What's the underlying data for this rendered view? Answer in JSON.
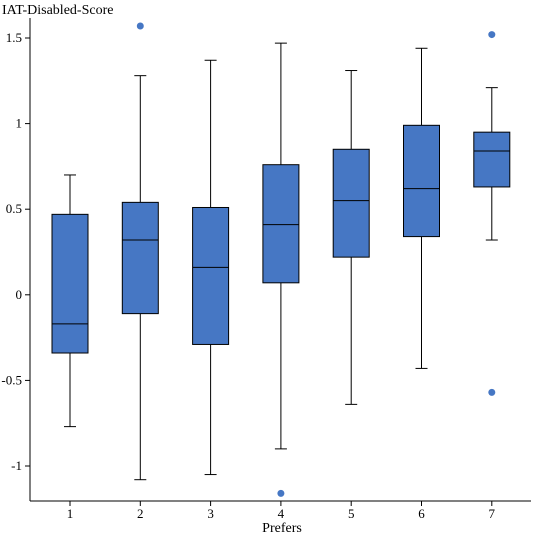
{
  "chart_data": {
    "type": "box",
    "ylabel": "IAT-Disabled-Score",
    "xlabel": "Prefers",
    "ylim": [
      -1.2,
      1.6
    ],
    "yticks": [
      {
        "value": 1.5,
        "label": "1.5"
      },
      {
        "value": 1.0,
        "label": "1"
      },
      {
        "value": 0.5,
        "label": "0.5"
      },
      {
        "value": 0.0,
        "label": "0"
      },
      {
        "value": -0.5,
        "label": "-0.5"
      },
      {
        "value": -1.0,
        "label": "-1"
      }
    ],
    "grid": false,
    "box_color": "#4677c4",
    "outlier_color": "#4677c4",
    "categories": [
      "1",
      "2",
      "3",
      "4",
      "5",
      "6",
      "7"
    ],
    "boxes": [
      {
        "category": "1",
        "whisker_low": -0.77,
        "q1": -0.34,
        "median": -0.17,
        "q3": 0.47,
        "whisker_high": 0.7,
        "outliers": []
      },
      {
        "category": "2",
        "whisker_low": -1.08,
        "q1": -0.11,
        "median": 0.32,
        "q3": 0.54,
        "whisker_high": 1.28,
        "outliers": [
          1.57
        ]
      },
      {
        "category": "3",
        "whisker_low": -1.05,
        "q1": -0.29,
        "median": 0.16,
        "q3": 0.51,
        "whisker_high": 1.37,
        "outliers": []
      },
      {
        "category": "4",
        "whisker_low": -0.9,
        "q1": 0.07,
        "median": 0.41,
        "q3": 0.76,
        "whisker_high": 1.47,
        "outliers": [
          -1.16
        ]
      },
      {
        "category": "5",
        "whisker_low": -0.64,
        "q1": 0.22,
        "median": 0.55,
        "q3": 0.85,
        "whisker_high": 1.31,
        "outliers": []
      },
      {
        "category": "6",
        "whisker_low": -0.43,
        "q1": 0.34,
        "median": 0.62,
        "q3": 0.99,
        "whisker_high": 1.44,
        "outliers": []
      },
      {
        "category": "7",
        "whisker_low": 0.32,
        "q1": 0.63,
        "median": 0.84,
        "q3": 0.95,
        "whisker_high": 1.21,
        "outliers": [
          1.52,
          -0.57
        ]
      }
    ]
  }
}
